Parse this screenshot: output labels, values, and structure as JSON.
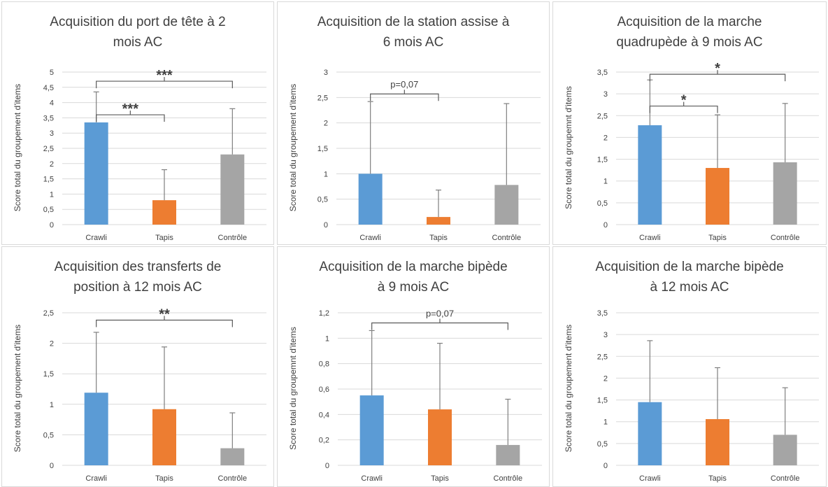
{
  "colors": {
    "Crawli": "#5b9bd5",
    "Tapis": "#ed7d31",
    "Contrôle": "#a5a5a5",
    "errorbar": "#7f7f7f",
    "grid": "#d9d9d9",
    "text": "#404040"
  },
  "chart_data": [
    {
      "type": "bar",
      "title": "Acquisition du port de tête à 2\nmois AC",
      "ylabel": "Score total du groupement d'items",
      "categories": [
        "Crawli",
        "Tapis",
        "Contrôle"
      ],
      "values": [
        3.35,
        0.8,
        2.3
      ],
      "error_upper": [
        4.35,
        1.8,
        3.8
      ],
      "ylim": [
        0,
        5
      ],
      "yticks": [
        "0",
        "0,5",
        "1",
        "1,5",
        "2",
        "2,5",
        "3",
        "3,5",
        "4",
        "4,5",
        "5"
      ],
      "ytick_values": [
        0,
        0.5,
        1,
        1.5,
        2,
        2.5,
        3,
        3.5,
        4,
        4.5,
        5
      ],
      "grid": true,
      "annotations": [
        {
          "from": 0,
          "to": 2,
          "label": "***",
          "y": 4.7
        },
        {
          "from": 0,
          "to": 1,
          "label": "***",
          "y": 3.6
        }
      ]
    },
    {
      "type": "bar",
      "title": "Acquisition de la station assise à\n6 mois AC",
      "ylabel": "Score total du groupement d'items",
      "categories": [
        "Crawli",
        "Tapis",
        "Contrôle"
      ],
      "values": [
        1.0,
        0.15,
        0.78
      ],
      "error_upper": [
        2.42,
        0.68,
        2.38
      ],
      "ylim": [
        0,
        3
      ],
      "yticks": [
        "0",
        "0,5",
        "1",
        "1,5",
        "2",
        "2,5",
        "3"
      ],
      "ytick_values": [
        0,
        0.5,
        1,
        1.5,
        2,
        2.5,
        3
      ],
      "grid": true,
      "annotations": [
        {
          "from": 0,
          "to": 1,
          "label": "p=0,07",
          "y": 2.57
        }
      ]
    },
    {
      "type": "bar",
      "title": "Acquisition de la marche\nquadrupède à 9 mois AC",
      "ylabel": "Score total du groupemnt d'items",
      "categories": [
        "Crawli",
        "Tapis",
        "Contrôle"
      ],
      "values": [
        2.28,
        1.3,
        1.43
      ],
      "error_upper": [
        3.32,
        2.52,
        2.78
      ],
      "ylim": [
        0,
        3.5
      ],
      "yticks": [
        "0",
        "0,5",
        "1",
        "1,5",
        "2",
        "2,5",
        "3",
        "3,5"
      ],
      "ytick_values": [
        0,
        0.5,
        1,
        1.5,
        2,
        2.5,
        3,
        3.5
      ],
      "grid": true,
      "annotations": [
        {
          "from": 0,
          "to": 2,
          "label": "*",
          "y": 3.45
        },
        {
          "from": 0,
          "to": 1,
          "label": "*",
          "y": 2.72
        }
      ]
    },
    {
      "type": "bar",
      "title": "Acquisition des transferts de\nposition à 12 mois AC",
      "ylabel": "Score total du groupement d'items",
      "categories": [
        "Crawli",
        "Tapis",
        "Contrôle"
      ],
      "values": [
        1.19,
        0.92,
        0.28
      ],
      "error_upper": [
        2.18,
        1.94,
        0.86
      ],
      "ylim": [
        0,
        2.5
      ],
      "yticks": [
        "0",
        "0,5",
        "1",
        "1,5",
        "2",
        "2,5"
      ],
      "ytick_values": [
        0,
        0.5,
        1,
        1.5,
        2,
        2.5
      ],
      "grid": true,
      "annotations": [
        {
          "from": 0,
          "to": 2,
          "label": "**",
          "y": 2.38
        }
      ]
    },
    {
      "type": "bar",
      "title": "Acquisition de la marche bipède\nà 9 mois AC",
      "ylabel": "Score total du groupemnt d'items",
      "categories": [
        "Crawli",
        "Tapis",
        "Contrôle"
      ],
      "values": [
        0.55,
        0.44,
        0.16
      ],
      "error_upper": [
        1.06,
        0.96,
        0.52
      ],
      "ylim": [
        0,
        1.2
      ],
      "yticks": [
        "0",
        "0,2",
        "0,4",
        "0,6",
        "0,8",
        "1",
        "1,2"
      ],
      "ytick_values": [
        0,
        0.2,
        0.4,
        0.6,
        0.8,
        1.0,
        1.2
      ],
      "grid": true,
      "annotations": [
        {
          "from": 0,
          "to": 2,
          "label": "p=0,07",
          "y": 1.12
        }
      ]
    },
    {
      "type": "bar",
      "title": "Acquisition de la marche bipède\nà 12 mois AC",
      "ylabel": "Score total du groupement d'items",
      "categories": [
        "Crawli",
        "Tapis",
        "Contrôle"
      ],
      "values": [
        1.45,
        1.06,
        0.7
      ],
      "error_upper": [
        2.86,
        2.24,
        1.78
      ],
      "ylim": [
        0,
        3.5
      ],
      "yticks": [
        "0",
        "0,5",
        "1",
        "1,5",
        "2",
        "2,5",
        "3",
        "3,5"
      ],
      "ytick_values": [
        0,
        0.5,
        1,
        1.5,
        2,
        2.5,
        3,
        3.5
      ],
      "grid": true,
      "annotations": []
    }
  ]
}
